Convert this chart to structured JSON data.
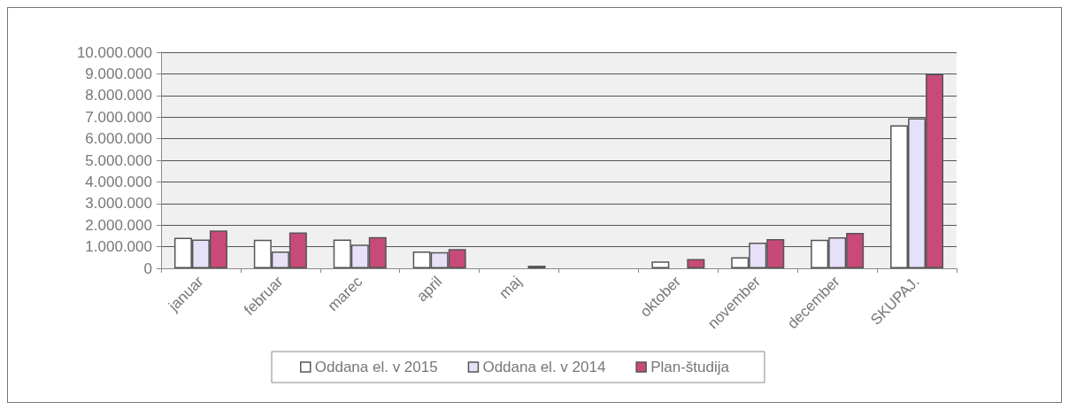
{
  "chart_data": {
    "type": "bar",
    "categories": [
      "januar",
      "februar",
      "marec",
      "april",
      "maj",
      null,
      "oktober",
      "november",
      "december",
      "SKUPAJ."
    ],
    "series": [
      {
        "name": "Oddana el. v 2015",
        "color": "#ffffff",
        "values": [
          1410000,
          1320000,
          1330000,
          780000,
          null,
          null,
          320000,
          510000,
          1320000,
          6620000
        ]
      },
      {
        "name": "Oddana el. v 2014",
        "color": "#e6e0f8",
        "values": [
          1330000,
          780000,
          1100000,
          750000,
          null,
          null,
          null,
          1190000,
          1430000,
          6950000
        ]
      },
      {
        "name": "Plan-študija",
        "color": "#c84a78",
        "values": [
          1750000,
          1660000,
          1440000,
          890000,
          120000,
          null,
          430000,
          1350000,
          1640000,
          9000000
        ]
      }
    ],
    "ylim": [
      0,
      10000000
    ],
    "yticks": [
      {
        "value": 0,
        "label": "0"
      },
      {
        "value": 1000000,
        "label": "1.000.000"
      },
      {
        "value": 2000000,
        "label": "2.000.000"
      },
      {
        "value": 3000000,
        "label": "3.000.000"
      },
      {
        "value": 4000000,
        "label": "4.000.000"
      },
      {
        "value": 5000000,
        "label": "5.000.000"
      },
      {
        "value": 6000000,
        "label": "6.000.000"
      },
      {
        "value": 7000000,
        "label": "7.000.000"
      },
      {
        "value": 8000000,
        "label": "8.000.000"
      },
      {
        "value": 9000000,
        "label": "9.000.000"
      },
      {
        "value": 10000000,
        "label": "10.000.000"
      }
    ],
    "grid": "y",
    "legend": "bottom"
  }
}
